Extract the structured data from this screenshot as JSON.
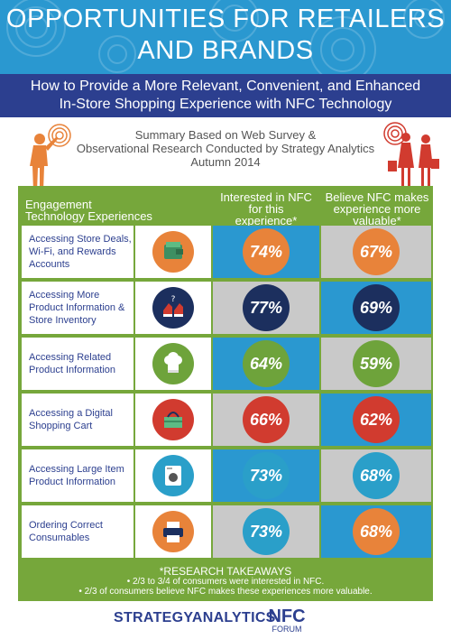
{
  "header": {
    "title_line1": "OPPORTUNITIES FOR RETAILERS",
    "title_line2": "AND BRANDS",
    "subtitle_line1": "How to Provide a More Relevant, Convenient, and Enhanced",
    "subtitle_line2": "In-Store Shopping Experience with NFC Technology",
    "summary_line1": "Summary Based on Web Survey &",
    "summary_line2": "Observational Research Conducted by Strategy Analytics",
    "summary_line3": "Autumn 2014"
  },
  "colors": {
    "banner": "#2a98d0",
    "subbar": "#2c3f8f",
    "green": "#76a73b",
    "orange": "#e8833a",
    "navy": "#1c2f5e",
    "olive": "#6ea33b",
    "red": "#d13b2f",
    "teal": "#2a9fc9",
    "grey_bg": "#c9c9c9"
  },
  "table": {
    "col_header_left": [
      "Engagement",
      "Technology Experiences"
    ],
    "col_header_mid": [
      "Interested in NFC",
      "for this",
      "experience*"
    ],
    "col_header_right": [
      "Believe NFC makes",
      "experience more",
      "valuable*"
    ],
    "rows": [
      {
        "label": "Accessing Store Deals, Wi-Fi, and Rewards Accounts",
        "icon": "wallet-icon",
        "interested": "74%",
        "valuable": "67%",
        "color": "orange"
      },
      {
        "label": "Accessing More Product Information & Store Inventory",
        "icon": "sneakers-icon",
        "interested": "77%",
        "valuable": "69%",
        "color": "navy"
      },
      {
        "label": "Accessing Related Product Information",
        "icon": "chef-hat-icon",
        "interested": "64%",
        "valuable": "59%",
        "color": "olive"
      },
      {
        "label": "Accessing a Digital Shopping Cart",
        "icon": "shopping-basket-icon",
        "interested": "66%",
        "valuable": "62%",
        "color": "red"
      },
      {
        "label": "Accessing Large Item Product Information",
        "icon": "washing-machine-icon",
        "interested": "73%",
        "valuable": "68%",
        "color": "teal"
      },
      {
        "label": "Ordering Correct Consumables",
        "icon": "printer-icon",
        "interested": "73%",
        "valuable": "68%",
        "color": "orange"
      }
    ]
  },
  "takeaways": {
    "title": "*RESEARCH TAKEAWAYS",
    "bullets": [
      "• 2/3 to 3/4 of consumers were interested in NFC.",
      "• 2/3 of consumers believe NFC makes these experiences more valuable."
    ]
  },
  "footer": {
    "brand": "STRATEGYANALYTICS",
    "nfc_logo_text": "NFC",
    "nfc_logo_sub": "FORUM"
  }
}
